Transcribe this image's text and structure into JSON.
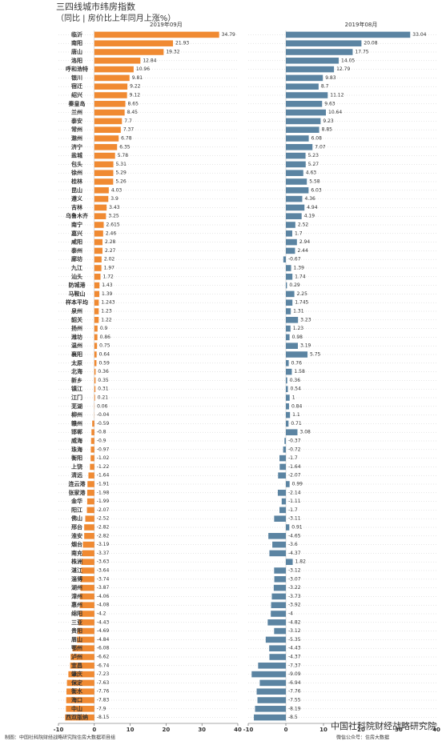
{
  "chart_data": {
    "type": "bar",
    "orientation": "horizontal",
    "title": "三四线城市纬房指数",
    "subtitle": "（同比 | 房价比上年同月上涨%）",
    "categories": [
      "临沂",
      "南阳",
      "唐山",
      "洛阳",
      "呼和浩特",
      "银川",
      "宿迁",
      "绍兴",
      "秦皇岛",
      "兰州",
      "泰安",
      "常州",
      "滁州",
      "济宁",
      "盐城",
      "包头",
      "徐州",
      "桂林",
      "昆山",
      "遵义",
      "吉林",
      "乌鲁木齐",
      "南宁",
      "嘉兴",
      "咸阳",
      "泰州",
      "廊坊",
      "九江",
      "汕头",
      "防城港",
      "马鞍山",
      "样本平均",
      "泉州",
      "韶关",
      "扬州",
      "潍坊",
      "温州",
      "襄阳",
      "太原",
      "北海",
      "新乡",
      "镇江",
      "江门",
      "芜湖",
      "柳州",
      "赣州",
      "邯郸",
      "威海",
      "珠海",
      "衡阳",
      "上饶",
      "清远",
      "连云港",
      "张家港",
      "金华",
      "阳江",
      "佛山",
      "邢台",
      "淮安",
      "烟台",
      "南充",
      "株洲",
      "湛江",
      "淄博",
      "湖州",
      "漳州",
      "惠州",
      "绵阳",
      "三亚",
      "贵阳",
      "眉山",
      "鄂州",
      "泸州",
      "宜昌",
      "肇庆",
      "保定",
      "衡水",
      "海口",
      "中山",
      "西双版纳"
    ],
    "series": [
      {
        "name": "2019年09月",
        "color": "#f08a32",
        "values": [
          34.79,
          21.93,
          19.32,
          12.84,
          10.96,
          9.81,
          9.22,
          9.12,
          8.65,
          8.45,
          7.7,
          7.37,
          6.78,
          6.35,
          5.78,
          5.31,
          5.29,
          5.26,
          4.03,
          3.9,
          3.43,
          3.25,
          2.615,
          2.46,
          2.28,
          2.27,
          2.02,
          1.97,
          1.72,
          1.43,
          1.39,
          1.243,
          1.23,
          1.22,
          0.9,
          0.86,
          0.75,
          0.64,
          0.59,
          0.36,
          0.35,
          0.31,
          0.21,
          0.06,
          -0.04,
          -0.59,
          -0.8,
          -0.9,
          -0.97,
          -1.02,
          -1.22,
          -1.64,
          -1.91,
          -1.98,
          -1.99,
          -2.07,
          -2.52,
          -2.82,
          -2.82,
          -3.19,
          -3.37,
          -3.63,
          -3.64,
          -3.74,
          -3.87,
          -4.06,
          -4.08,
          -4.2,
          -4.43,
          -4.69,
          -4.84,
          -6.08,
          -6.62,
          -6.74,
          -7.23,
          -7.63,
          -7.76,
          -7.83,
          -7.9,
          -8.15
        ]
      },
      {
        "name": "2019年08月",
        "color": "#5b84a2",
        "values": [
          33.04,
          20.08,
          17.75,
          14.05,
          12.79,
          9.83,
          8.7,
          11.12,
          9.63,
          10.64,
          9.23,
          8.85,
          6.08,
          7.07,
          5.23,
          5.27,
          4.63,
          5.58,
          6.03,
          4.36,
          4.94,
          4.19,
          2.52,
          1.7,
          2.94,
          2.44,
          -0.67,
          1.39,
          1.74,
          0.29,
          2.25,
          1.745,
          1.31,
          3.23,
          1.23,
          0.98,
          3.19,
          5.75,
          0.76,
          1.58,
          0.36,
          0.54,
          1,
          0.84,
          1.1,
          0.71,
          3.08,
          -0.37,
          -0.72,
          -1.7,
          -1.64,
          -2.07,
          0.99,
          -2.14,
          -1.11,
          -1.7,
          -3.11,
          0.91,
          -4.65,
          -3.6,
          -4.37,
          1.82,
          -3.12,
          -3.07,
          -3.22,
          -3.73,
          -3.92,
          -4,
          -4.82,
          -3.12,
          -5.35,
          -4.43,
          -4.37,
          -7.37,
          -9.09,
          -6.94,
          -7.76,
          -7.55,
          -8.19,
          -8.5
        ]
      }
    ],
    "xlim": [
      -10,
      40
    ],
    "xticks": [
      -10,
      0,
      10,
      20,
      30,
      40
    ],
    "source": "制图：中国社科院财经战略研究院住房大数据项目组",
    "credit": "微信公众号：住房大数据",
    "watermark": "中国社科院财经战略研究院"
  }
}
